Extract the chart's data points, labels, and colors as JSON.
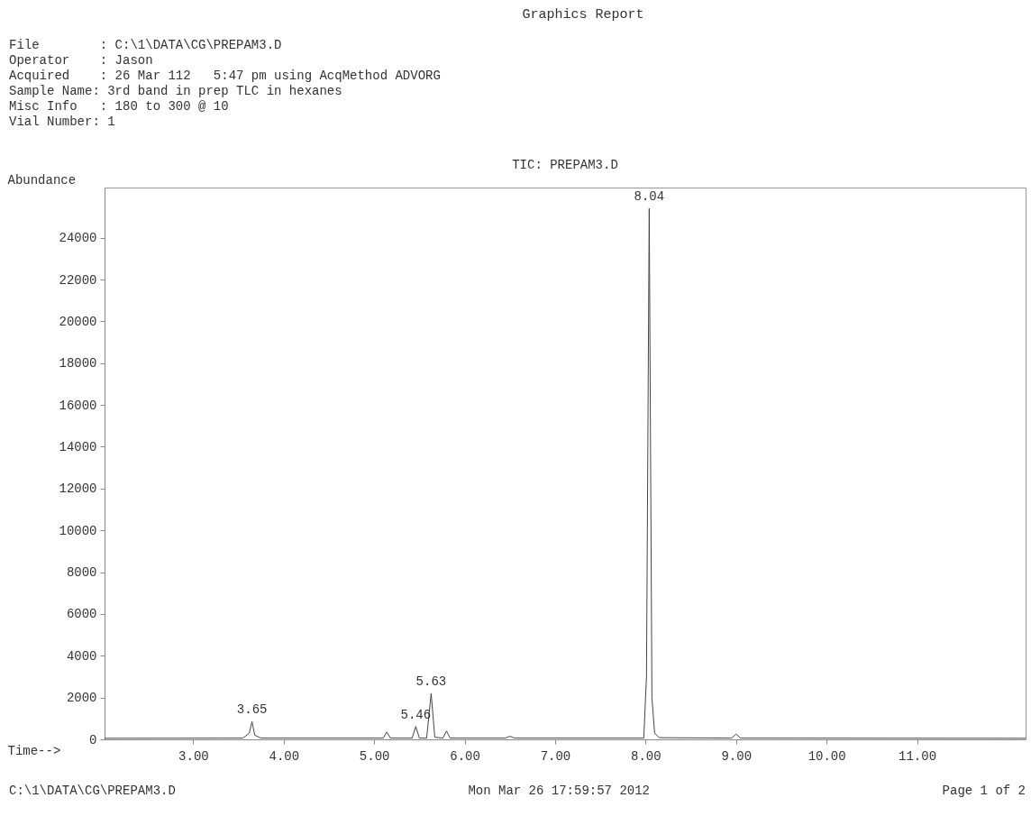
{
  "chart_data": {
    "type": "line",
    "title": "Graphics Report",
    "subtitle": "TIC: PREPAM3.D",
    "xlabel": "Time-->",
    "ylabel": "Abundance",
    "x": [
      2.02,
      3.55,
      3.62,
      3.65,
      3.68,
      3.75,
      5.1,
      5.14,
      5.18,
      5.42,
      5.46,
      5.5,
      5.58,
      5.63,
      5.67,
      5.76,
      5.8,
      5.84,
      6.45,
      6.5,
      6.55,
      7.98,
      8.01,
      8.04,
      8.07,
      8.1,
      8.15,
      8.95,
      9.0,
      9.05,
      12.2
    ],
    "series": [
      {
        "color": "#444444",
        "values": [
          50,
          60,
          300,
          850,
          200,
          60,
          60,
          350,
          60,
          60,
          620,
          60,
          60,
          2200,
          100,
          60,
          400,
          60,
          60,
          150,
          60,
          60,
          3000,
          25400,
          2000,
          300,
          80,
          60,
          250,
          60,
          50
        ]
      }
    ],
    "xlim": [
      2.02,
      12.2
    ],
    "xticks": [
      {
        "value": 3,
        "label": "3.00"
      },
      {
        "value": 4,
        "label": "4.00"
      },
      {
        "value": 5,
        "label": "5.00"
      },
      {
        "value": 6,
        "label": "6.00"
      },
      {
        "value": 7,
        "label": "7.00"
      },
      {
        "value": 8,
        "label": "8.00"
      },
      {
        "value": 9,
        "label": "9.00"
      },
      {
        "value": 10,
        "label": "10.00"
      },
      {
        "value": 11,
        "label": "11.00"
      }
    ],
    "ylim": [
      0,
      26400
    ],
    "yticks": [
      0,
      2000,
      4000,
      6000,
      8000,
      10000,
      12000,
      14000,
      16000,
      18000,
      20000,
      22000,
      24000
    ],
    "grid": false,
    "marker": "none",
    "line_style": "solid",
    "annotations": [
      "File        : C:\\1\\DATA\\CG\\PREPAM3.D",
      "Operator    : Jason",
      "Acquired    : 26 Mar 112   5:47 pm using AcqMethod ADVORG",
      "Sample Name: 3rd band in prep TLC in hexanes",
      "Misc Info   : 180 to 300 @ 10",
      "Vial Number: 1",
      "C:\\1\\DATA\\CG\\PREPAM3.D",
      "Mon Mar 26 17:59:57 2012",
      "Page 1 of 2",
      {
        "text": "3.65",
        "x": 3.65,
        "y": 850
      },
      {
        "text": "5.46",
        "x": 5.46,
        "y": 620
      },
      {
        "text": "5.63",
        "x": 5.63,
        "y": 2200
      },
      {
        "text": "8.04",
        "x": 8.04,
        "y": 25400
      }
    ]
  }
}
